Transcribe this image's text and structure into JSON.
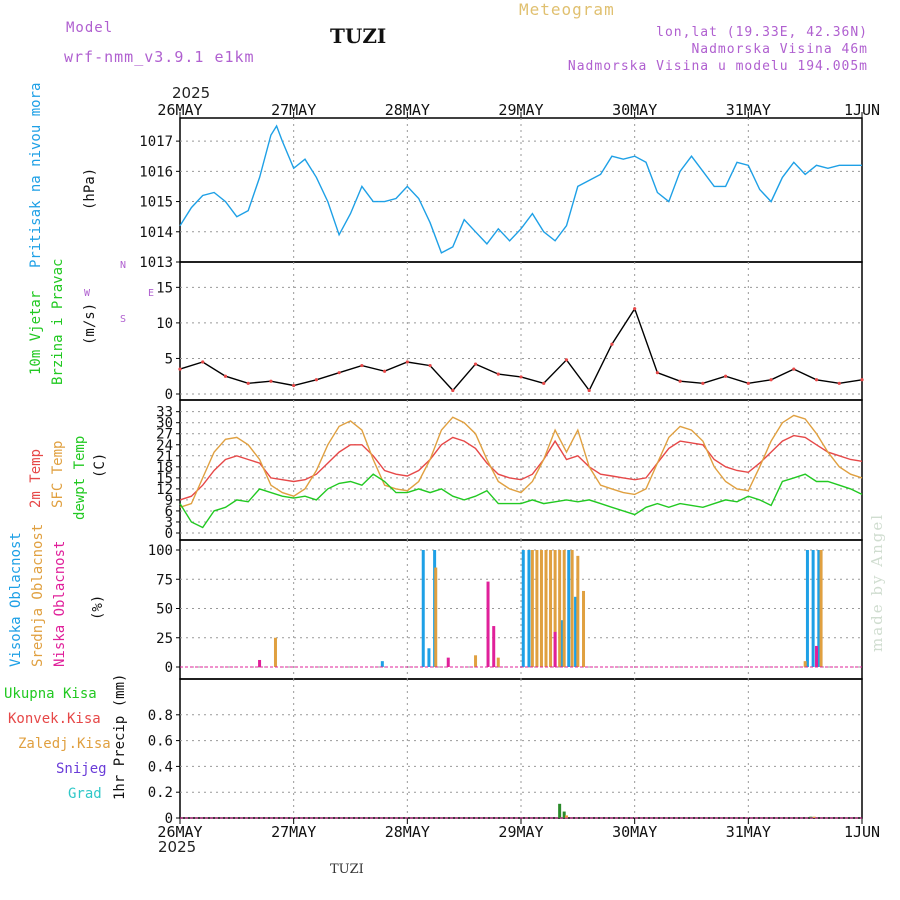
{
  "header": {
    "model_label": "Model",
    "model_name": "wrf-nmm_v3.9.1 e1km",
    "station": "TUZI",
    "meteogram": "Meteogram",
    "lonlat": "lon,lat (19.33E, 42.36N)",
    "elevation": "Nadmorska Visina 46m",
    "model_elevation": "Nadmorska Visina u modelu 194.005m",
    "credit": "made by Angel",
    "footer_station": "TUZI"
  },
  "colors": {
    "purple": "#b060d0",
    "gold": "#e0c070",
    "blue": "#1ea0e6",
    "red": "#e64848",
    "orange": "#e0a040",
    "green": "#22c922",
    "magenta": "#e0209a",
    "violet": "#6a3cd8",
    "cyan": "#30c8c8"
  },
  "time_axis": {
    "year": "2025",
    "labels": [
      "26MAY",
      "27MAY",
      "28MAY",
      "29MAY",
      "30MAY",
      "31MAY",
      "1JUN"
    ]
  },
  "panels": {
    "pressure": {
      "labels": [
        "Pritisak na nivou mora"
      ],
      "unit": "(hPa)"
    },
    "wind": {
      "labels": [
        "10m Vjetar",
        "Brzina i Pravac"
      ],
      "unit": "(m/s)",
      "compass": {
        "n": "N",
        "w": "W",
        "e": "E",
        "s": "S"
      }
    },
    "temp": {
      "labels": [
        "2m Temp",
        "SFC Temp",
        "dewpt Temp"
      ],
      "unit": "(C)"
    },
    "cloud": {
      "labels": [
        "Visoka Oblacnost",
        "Srednja Oblacnost",
        "Niska Oblacnost"
      ],
      "unit": "(%)"
    },
    "precip": {
      "labels": [
        "Ukupna Kisa",
        "Konvek.Kisa",
        "Zaledj.Kisa",
        "Snijeg",
        "Grad"
      ],
      "unit": "1hr Precip (mm)"
    }
  },
  "chart_data": [
    {
      "type": "line",
      "panel": "pressure",
      "ylim": [
        1013,
        1017.5
      ],
      "yticks": [
        1013,
        1014,
        1015,
        1016,
        1017
      ],
      "grid": true,
      "series": [
        {
          "color": "#1ea0e6",
          "x": [
            0,
            0.1,
            0.2,
            0.3,
            0.4,
            0.5,
            0.6,
            0.7,
            0.8,
            0.85,
            0.9,
            1.0,
            1.1,
            1.2,
            1.3,
            1.4,
            1.5,
            1.6,
            1.7,
            1.8,
            1.9,
            2.0,
            2.1,
            2.2,
            2.3,
            2.4,
            2.5,
            2.6,
            2.7,
            2.8,
            2.9,
            3.0,
            3.1,
            3.2,
            3.3,
            3.4,
            3.5,
            3.6,
            3.7,
            3.8,
            3.9,
            4.0,
            4.1,
            4.2,
            4.3,
            4.4,
            4.5,
            4.6,
            4.7,
            4.8,
            4.9,
            5.0,
            5.1,
            5.2,
            5.3,
            5.4,
            5.5,
            5.6,
            5.7,
            5.8,
            5.9,
            6.0
          ],
          "values": [
            1014.2,
            1014.8,
            1015.2,
            1015.3,
            1015.0,
            1014.5,
            1014.7,
            1015.8,
            1017.2,
            1017.5,
            1017.0,
            1016.1,
            1016.4,
            1015.8,
            1015.0,
            1013.9,
            1014.6,
            1015.5,
            1015.0,
            1015.0,
            1015.1,
            1015.5,
            1015.1,
            1014.3,
            1013.3,
            1013.5,
            1014.4,
            1014.0,
            1013.6,
            1014.1,
            1013.7,
            1014.1,
            1014.6,
            1014.0,
            1013.7,
            1014.2,
            1015.5,
            1015.7,
            1015.9,
            1016.5,
            1016.4,
            1016.5,
            1016.3,
            1015.3,
            1015.0,
            1016.0,
            1016.5,
            1016.0,
            1015.5,
            1015.5,
            1016.3,
            1016.2,
            1015.4,
            1015.0,
            1015.8,
            1016.3,
            1015.9,
            1016.2,
            1016.1,
            1016.2,
            1016.2,
            1016.2
          ]
        }
      ]
    },
    {
      "type": "line",
      "panel": "wind",
      "ylim": [
        0,
        18
      ],
      "yticks": [
        0,
        5,
        10,
        15
      ],
      "grid": true,
      "series": [
        {
          "color": "#000000",
          "x": [
            0,
            0.2,
            0.4,
            0.6,
            0.8,
            1.0,
            1.2,
            1.4,
            1.6,
            1.8,
            2.0,
            2.2,
            2.4,
            2.6,
            2.8,
            3.0,
            3.2,
            3.4,
            3.6,
            3.8,
            4.0,
            4.2,
            4.4,
            4.6,
            4.8,
            5.0,
            5.2,
            5.4,
            5.6,
            5.8,
            6.0
          ],
          "values": [
            3.5,
            4.5,
            2.5,
            1.5,
            1.8,
            1.2,
            2.0,
            3.0,
            4.0,
            3.2,
            4.5,
            4.0,
            0.5,
            4.2,
            2.8,
            2.4,
            1.5,
            4.8,
            0.5,
            7.0,
            12.0,
            3.0,
            1.8,
            1.5,
            2.5,
            1.5,
            2.0,
            3.5,
            2.0,
            1.5,
            2.0
          ]
        }
      ]
    },
    {
      "type": "line",
      "panel": "temp",
      "ylim": [
        0,
        34
      ],
      "yticks": [
        0,
        3,
        6,
        9,
        12,
        15,
        18,
        21,
        24,
        27,
        30,
        33
      ],
      "grid": true,
      "series": [
        {
          "color": "#e64848",
          "x": [
            0,
            0.1,
            0.2,
            0.3,
            0.4,
            0.5,
            0.6,
            0.7,
            0.8,
            0.9,
            1.0,
            1.1,
            1.2,
            1.3,
            1.4,
            1.5,
            1.6,
            1.7,
            1.8,
            1.9,
            2.0,
            2.1,
            2.2,
            2.3,
            2.4,
            2.5,
            2.6,
            2.7,
            2.8,
            2.9,
            3.0,
            3.1,
            3.2,
            3.3,
            3.4,
            3.5,
            3.6,
            3.7,
            3.8,
            3.9,
            4.0,
            4.1,
            4.2,
            4.3,
            4.4,
            4.5,
            4.6,
            4.7,
            4.8,
            4.9,
            5.0,
            5.1,
            5.2,
            5.3,
            5.4,
            5.5,
            5.6,
            5.7,
            5.8,
            5.9,
            6.0
          ],
          "values": [
            9,
            10,
            13,
            17,
            20,
            21,
            20,
            19,
            15,
            14.5,
            14,
            14.5,
            16,
            19,
            22,
            24,
            24,
            21,
            17,
            16,
            15.5,
            17,
            20,
            24,
            26,
            25,
            23,
            19,
            16,
            15,
            14.5,
            16,
            20,
            25,
            20,
            21,
            18,
            16,
            15.5,
            15,
            14.5,
            15,
            19,
            23,
            25,
            24.5,
            24,
            20,
            18,
            17,
            16.5,
            19,
            22,
            25,
            26.5,
            26,
            24,
            22,
            21,
            20,
            19.5
          ]
        },
        {
          "color": "#e0a040",
          "x": [
            0,
            0.1,
            0.2,
            0.3,
            0.4,
            0.5,
            0.6,
            0.7,
            0.8,
            0.9,
            1.0,
            1.1,
            1.2,
            1.3,
            1.4,
            1.5,
            1.6,
            1.7,
            1.8,
            1.9,
            2.0,
            2.1,
            2.2,
            2.3,
            2.4,
            2.5,
            2.6,
            2.7,
            2.8,
            2.9,
            3.0,
            3.1,
            3.2,
            3.3,
            3.4,
            3.5,
            3.6,
            3.7,
            3.8,
            3.9,
            4.0,
            4.1,
            4.2,
            4.3,
            4.4,
            4.5,
            4.6,
            4.7,
            4.8,
            4.9,
            5.0,
            5.1,
            5.2,
            5.3,
            5.4,
            5.5,
            5.6,
            5.7,
            5.8,
            5.9,
            6.0
          ],
          "values": [
            7,
            8,
            15,
            22,
            25.5,
            26,
            24,
            20,
            13,
            11,
            10,
            12,
            17,
            24,
            29,
            30.5,
            28,
            20,
            13,
            12,
            11.5,
            14,
            20,
            28,
            31.5,
            30,
            27,
            20,
            14,
            12,
            11,
            14,
            20,
            28,
            22,
            28,
            18,
            13,
            12,
            11,
            10.5,
            12,
            19,
            26,
            29,
            28,
            25,
            18,
            14,
            12,
            11.5,
            18,
            25,
            30,
            32,
            31,
            27,
            22,
            18,
            16,
            15
          ]
        },
        {
          "color": "#22c922",
          "x": [
            0,
            0.1,
            0.2,
            0.3,
            0.4,
            0.5,
            0.6,
            0.7,
            0.8,
            0.9,
            1.0,
            1.1,
            1.2,
            1.3,
            1.4,
            1.5,
            1.6,
            1.7,
            1.8,
            1.9,
            2.0,
            2.1,
            2.2,
            2.3,
            2.4,
            2.5,
            2.6,
            2.7,
            2.8,
            2.9,
            3.0,
            3.1,
            3.2,
            3.3,
            3.4,
            3.5,
            3.6,
            3.7,
            3.8,
            3.9,
            4.0,
            4.1,
            4.2,
            4.3,
            4.4,
            4.5,
            4.6,
            4.7,
            4.8,
            4.9,
            5.0,
            5.1,
            5.2,
            5.3,
            5.4,
            5.5,
            5.6,
            5.7,
            5.8,
            5.9,
            6.0
          ],
          "values": [
            8,
            3,
            1.5,
            6,
            7,
            9,
            8.5,
            12,
            11,
            10,
            9.5,
            10,
            9,
            12,
            13.5,
            14,
            13,
            16,
            14,
            11,
            11,
            12,
            11,
            12,
            10,
            9,
            10,
            11.5,
            8,
            8,
            8,
            9,
            8,
            8.5,
            9,
            8.5,
            9,
            8,
            7,
            6,
            5,
            7,
            8,
            7,
            8,
            7.5,
            7,
            8,
            9,
            8.5,
            10,
            9,
            7.5,
            14,
            15,
            16,
            14,
            14,
            13,
            12,
            10.5
          ]
        }
      ]
    },
    {
      "type": "bar",
      "panel": "cloud",
      "ylim": [
        0,
        100
      ],
      "yticks": [
        0,
        25,
        50,
        75,
        100
      ],
      "grid": true,
      "series": [
        {
          "name": "Visoka Oblacnost",
          "color": "#1ea0e6",
          "x": [
            1.78,
            2.14,
            2.19,
            2.24,
            3.02,
            3.07,
            3.36,
            3.42,
            3.48,
            5.52,
            5.57,
            5.62
          ],
          "values": [
            5,
            100,
            16,
            100,
            100,
            100,
            40,
            100,
            60,
            100,
            100,
            100
          ]
        },
        {
          "name": "Srednja Oblacnost",
          "color": "#e0a040",
          "x": [
            0.84,
            2.25,
            2.6,
            2.8,
            3.1,
            3.14,
            3.18,
            3.22,
            3.26,
            3.3,
            3.34,
            3.38,
            3.45,
            3.5,
            3.55,
            5.5,
            5.64
          ],
          "values": [
            25,
            85,
            10,
            8,
            100,
            100,
            100,
            100,
            100,
            100,
            100,
            100,
            100,
            95,
            65,
            5,
            100
          ]
        },
        {
          "name": "Niska Oblacnost",
          "color": "#e0209a",
          "x": [
            0.7,
            2.36,
            2.71,
            2.76,
            3.3,
            5.6
          ],
          "values": [
            6,
            8,
            73,
            35,
            30,
            18
          ]
        }
      ]
    },
    {
      "type": "bar",
      "panel": "precip",
      "ylim": [
        0,
        1
      ],
      "yticks": [
        0,
        0.2,
        0.4,
        0.6,
        0.8
      ],
      "grid": true,
      "series": [
        {
          "name": "Ukupna Kisa",
          "color": "#2a8a2a",
          "x": [
            3.34,
            3.38,
            5.55
          ],
          "values": [
            0.11,
            0.05,
            0.01
          ]
        },
        {
          "name": "Zaledj.Kisa",
          "color": "#e0a040",
          "x": [
            3.4,
            5.58
          ],
          "values": [
            0.02,
            0.01
          ]
        }
      ]
    }
  ]
}
